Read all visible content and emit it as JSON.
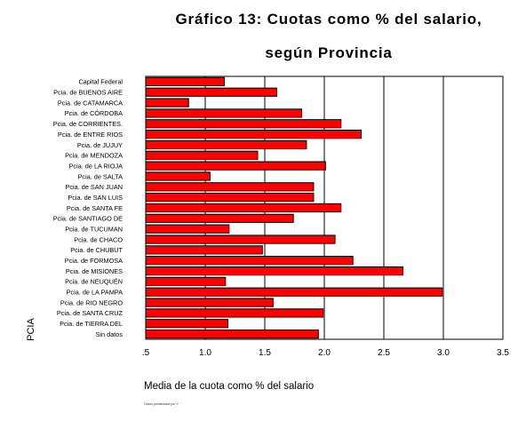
{
  "title_line1": "Gráfico 13: Cuotas como % del salario,",
  "title_line2": "según Provincia",
  "footnote": "Casos ponderados por V",
  "chart_data": {
    "type": "bar",
    "orientation": "horizontal",
    "xlabel": "Media de la cuota como % del salario",
    "ylabel": "PCIA",
    "xlim": [
      0.5,
      3.5
    ],
    "xticks": [
      ".5",
      "1.0",
      "1.5",
      "2.0",
      "2.5",
      "3.0",
      "3.5"
    ],
    "grid": "vertical",
    "bar_color": "#ff0000",
    "categories": [
      "Capital Federal",
      "Pcia. de BUENOS AIRE",
      "Pcia. de CATAMARCA",
      "Pcia. de CÓRDOBA",
      "Pcia. de CORRIENTES.",
      "Pcia. de ENTRE RIOS",
      "Pcia. de JUJUY",
      "Pcia. de MENDOZA",
      "Pcia. de LA RIOJA",
      "Pcia. de SALTA",
      "Pcia. de SAN JUAN",
      "Pcia. de SAN LUIS",
      "Pcia. de SANTA FE",
      "Pcia. de SANTIAGO DE",
      "Pcia. de TUCUMAN",
      "Pcia. de CHACO",
      "Pcia. de CHUBUT",
      "Pcia. de FORMOSA",
      "Pcia. de MISIONES",
      "Pcia. de NEUQUÉN",
      "Pcia. de LA PAMPA",
      "Pcia. de RIO NEGRO",
      "Pcia. de SANTA CRUZ",
      "Pcia. de TIERRA DEL",
      "Sin datos"
    ],
    "values": [
      1.16,
      1.6,
      0.86,
      1.81,
      2.14,
      2.31,
      1.85,
      1.44,
      2.01,
      1.04,
      1.91,
      1.91,
      2.14,
      1.74,
      1.2,
      2.09,
      1.48,
      2.24,
      2.66,
      1.17,
      2.99,
      1.57,
      1.99,
      1.19,
      1.95
    ]
  }
}
